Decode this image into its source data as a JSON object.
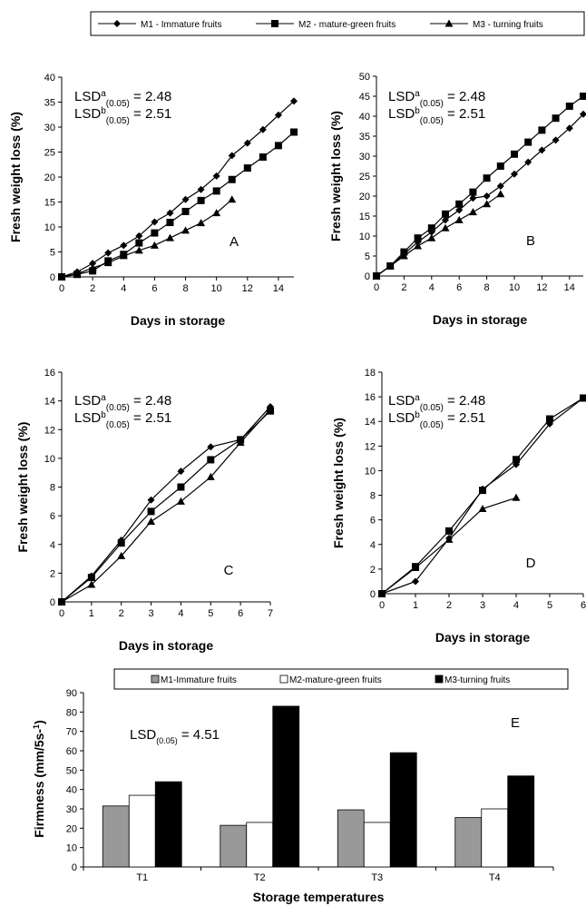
{
  "top_legend": [
    {
      "label": "M1 - Immature fruits",
      "marker": "diamond"
    },
    {
      "label": "M2 - mature-green fruits",
      "marker": "square"
    },
    {
      "label": "M3 - turning fruits",
      "marker": "triangle"
    }
  ],
  "bar_legend": [
    {
      "label": "M1-Immature fruits",
      "color": "#999999"
    },
    {
      "label": "M2-mature-green fruits",
      "color": "#ffffff"
    },
    {
      "label": "M3-turning fruits",
      "color": "#000000"
    }
  ],
  "lsd_line": {
    "a_base": "LSD",
    "a_sup": "a",
    "a_sub": "(0.05)",
    "a_val": "= 2.48",
    "b_base": "LSD",
    "b_sup": "b",
    "b_sub": "(0.05)",
    "b_val": "= 2.51"
  },
  "chart_data": [
    {
      "type": "line",
      "panel": "A",
      "xlabel": "Days in storage",
      "ylabel": "Fresh weight loss (%)",
      "xlim": [
        0,
        15
      ],
      "ylim": [
        0,
        40
      ],
      "xticks": [
        0,
        2,
        4,
        6,
        8,
        10,
        12,
        14
      ],
      "yticks": [
        0,
        5,
        10,
        15,
        20,
        25,
        30,
        35,
        40
      ],
      "series": [
        {
          "name": "M1 - Immature fruits",
          "marker": "diamond",
          "x": [
            0,
            1,
            2,
            3,
            4,
            5,
            6,
            7,
            8,
            9,
            10,
            11,
            12,
            13,
            14,
            15
          ],
          "y": [
            0,
            1,
            2.7,
            4.8,
            6.3,
            8.2,
            11,
            12.8,
            15.5,
            17.5,
            20.2,
            24.3,
            26.8,
            29.5,
            32.4,
            35.2
          ]
        },
        {
          "name": "M2 - mature-green fruits",
          "marker": "square",
          "x": [
            0,
            1,
            2,
            3,
            4,
            5,
            6,
            7,
            8,
            9,
            10,
            11,
            12,
            13,
            14,
            15
          ],
          "y": [
            0,
            0.5,
            1.2,
            3.2,
            4.5,
            6.8,
            8.8,
            10.9,
            13.1,
            15.3,
            17.2,
            19.5,
            21.8,
            24,
            26.3,
            29
          ]
        },
        {
          "name": "M3 - turning fruits",
          "marker": "triangle",
          "x": [
            0,
            1,
            2,
            3,
            4,
            5,
            6,
            7,
            8,
            9,
            10,
            11
          ],
          "y": [
            0,
            0.6,
            1.8,
            2.8,
            4.2,
            5.3,
            6.3,
            7.8,
            9.3,
            10.8,
            12.8,
            15.5
          ]
        }
      ]
    },
    {
      "type": "line",
      "panel": "B",
      "xlabel": "Days in storage",
      "ylabel": "Fresh weight loss (%)",
      "xlim": [
        0,
        15
      ],
      "ylim": [
        0,
        50
      ],
      "xticks": [
        0,
        2,
        4,
        6,
        8,
        10,
        12,
        14
      ],
      "yticks": [
        0,
        5,
        10,
        15,
        20,
        25,
        30,
        35,
        40,
        45,
        50
      ],
      "series": [
        {
          "name": "M1 - Immature fruits",
          "marker": "diamond",
          "x": [
            0,
            1,
            2,
            3,
            4,
            5,
            6,
            7,
            8,
            9,
            10,
            11,
            12,
            13,
            14,
            15
          ],
          "y": [
            0,
            2.5,
            5.5,
            8.5,
            11,
            14,
            16.5,
            19.5,
            20,
            22.5,
            25.5,
            28.5,
            31.5,
            34,
            37,
            40.5
          ]
        },
        {
          "name": "M2 - mature-green fruits",
          "marker": "square",
          "x": [
            0,
            1,
            2,
            3,
            4,
            5,
            6,
            7,
            8,
            9,
            10,
            11,
            12,
            13,
            14,
            15
          ],
          "y": [
            0,
            2.5,
            6,
            9.5,
            12,
            15.5,
            18,
            21,
            24.5,
            27.5,
            30.5,
            33.5,
            36.5,
            39.5,
            42.5,
            45
          ]
        },
        {
          "name": "M3 - turning fruits",
          "marker": "triangle",
          "x": [
            0,
            1,
            2,
            3,
            4,
            5,
            6,
            7,
            8,
            9
          ],
          "y": [
            0,
            2.5,
            5,
            7.5,
            9.5,
            12,
            14,
            16,
            18,
            20.5
          ]
        }
      ]
    },
    {
      "type": "line",
      "panel": "C",
      "xlabel": "Days in storage",
      "ylabel": "Fresh weight loss (%)",
      "xlim": [
        0,
        7
      ],
      "ylim": [
        0,
        16
      ],
      "xticks": [
        0,
        1,
        2,
        3,
        4,
        5,
        6,
        7
      ],
      "yticks": [
        0,
        2,
        4,
        6,
        8,
        10,
        12,
        14,
        16
      ],
      "series": [
        {
          "name": "M1 - Immature fruits",
          "marker": "diamond",
          "x": [
            0,
            1,
            2,
            3,
            4,
            5,
            6,
            7
          ],
          "y": [
            0,
            1.8,
            4.3,
            7.1,
            9.1,
            10.8,
            11.3,
            13.6
          ]
        },
        {
          "name": "M2 - mature-green fruits",
          "marker": "square",
          "x": [
            0,
            1,
            2,
            3,
            4,
            5,
            6,
            7
          ],
          "y": [
            0,
            1.7,
            4.1,
            6.3,
            8,
            9.9,
            11.3,
            13.3
          ]
        },
        {
          "name": "M3 - turning fruits",
          "marker": "triangle",
          "x": [
            0,
            1,
            2,
            3,
            4,
            5,
            6,
            7
          ],
          "y": [
            0,
            1.2,
            3.2,
            5.6,
            7,
            8.7,
            11.1,
            13.4
          ]
        }
      ]
    },
    {
      "type": "line",
      "panel": "D",
      "xlabel": "Days in storage",
      "ylabel": "Fresh weight loss (%)",
      "xlim": [
        0,
        6
      ],
      "ylim": [
        0,
        18
      ],
      "xticks": [
        0,
        1,
        2,
        3,
        4,
        5,
        6
      ],
      "yticks": [
        0,
        2,
        4,
        6,
        8,
        10,
        12,
        14,
        16,
        18
      ],
      "series": [
        {
          "name": "M1 - Immature fruits",
          "marker": "diamond",
          "x": [
            0,
            1,
            2,
            3,
            4,
            5,
            6
          ],
          "y": [
            0,
            1,
            4.5,
            8.5,
            10.5,
            13.8,
            15.9
          ]
        },
        {
          "name": "M2 - mature-green fruits",
          "marker": "square",
          "x": [
            0,
            1,
            2,
            3,
            4,
            5,
            6
          ],
          "y": [
            0,
            2.2,
            5.1,
            8.4,
            10.9,
            14.2,
            15.9
          ]
        },
        {
          "name": "M3 - turning fruits",
          "marker": "triangle",
          "x": [
            0,
            1,
            2,
            3,
            4
          ],
          "y": [
            0,
            2.1,
            4.4,
            6.9,
            7.8
          ]
        }
      ]
    },
    {
      "type": "bar",
      "panel": "E",
      "xlabel": "Storage temperatures",
      "ylabel": "Firmness (mm/5s-1)",
      "ylim": [
        0,
        90
      ],
      "yticks": [
        0,
        10,
        20,
        30,
        40,
        50,
        60,
        70,
        80,
        90
      ],
      "categories": [
        "T1",
        "T2",
        "T3",
        "T4"
      ],
      "series": [
        {
          "name": "M1-Immature fruits",
          "values": [
            31.5,
            21.5,
            29.5,
            25.5
          ]
        },
        {
          "name": "M2-mature-green fruits",
          "values": [
            37,
            23,
            23,
            30
          ]
        },
        {
          "name": "M3-turning fruits",
          "values": [
            44,
            83,
            59,
            47
          ]
        }
      ],
      "annotation": {
        "base": "LSD",
        "sub": "(0.05)",
        "val": "= 4.51"
      }
    }
  ]
}
